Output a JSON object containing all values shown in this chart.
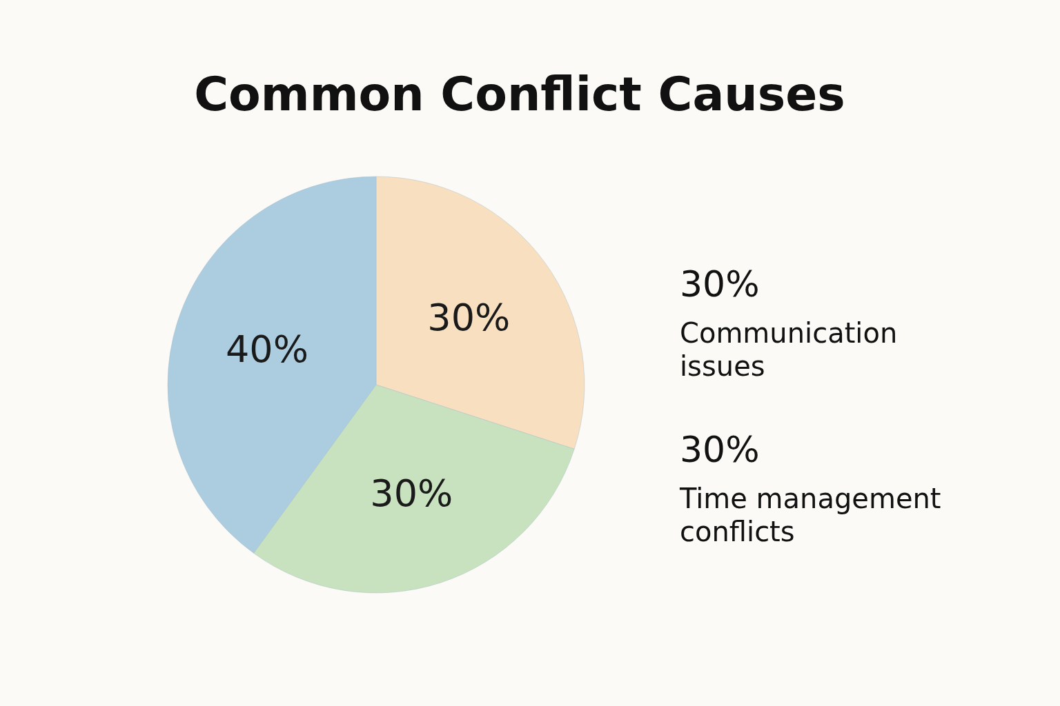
{
  "chart_data": {
    "type": "pie",
    "title": "Common Conflict Causes",
    "categories": [
      "Communication issues",
      "Time management conflicts",
      null
    ],
    "values": [
      30,
      30,
      40
    ],
    "value_labels": [
      "30%",
      "30%",
      "40%"
    ],
    "colors": [
      "#f8dfc0",
      "#c8e2bf",
      "#accde0"
    ]
  }
}
